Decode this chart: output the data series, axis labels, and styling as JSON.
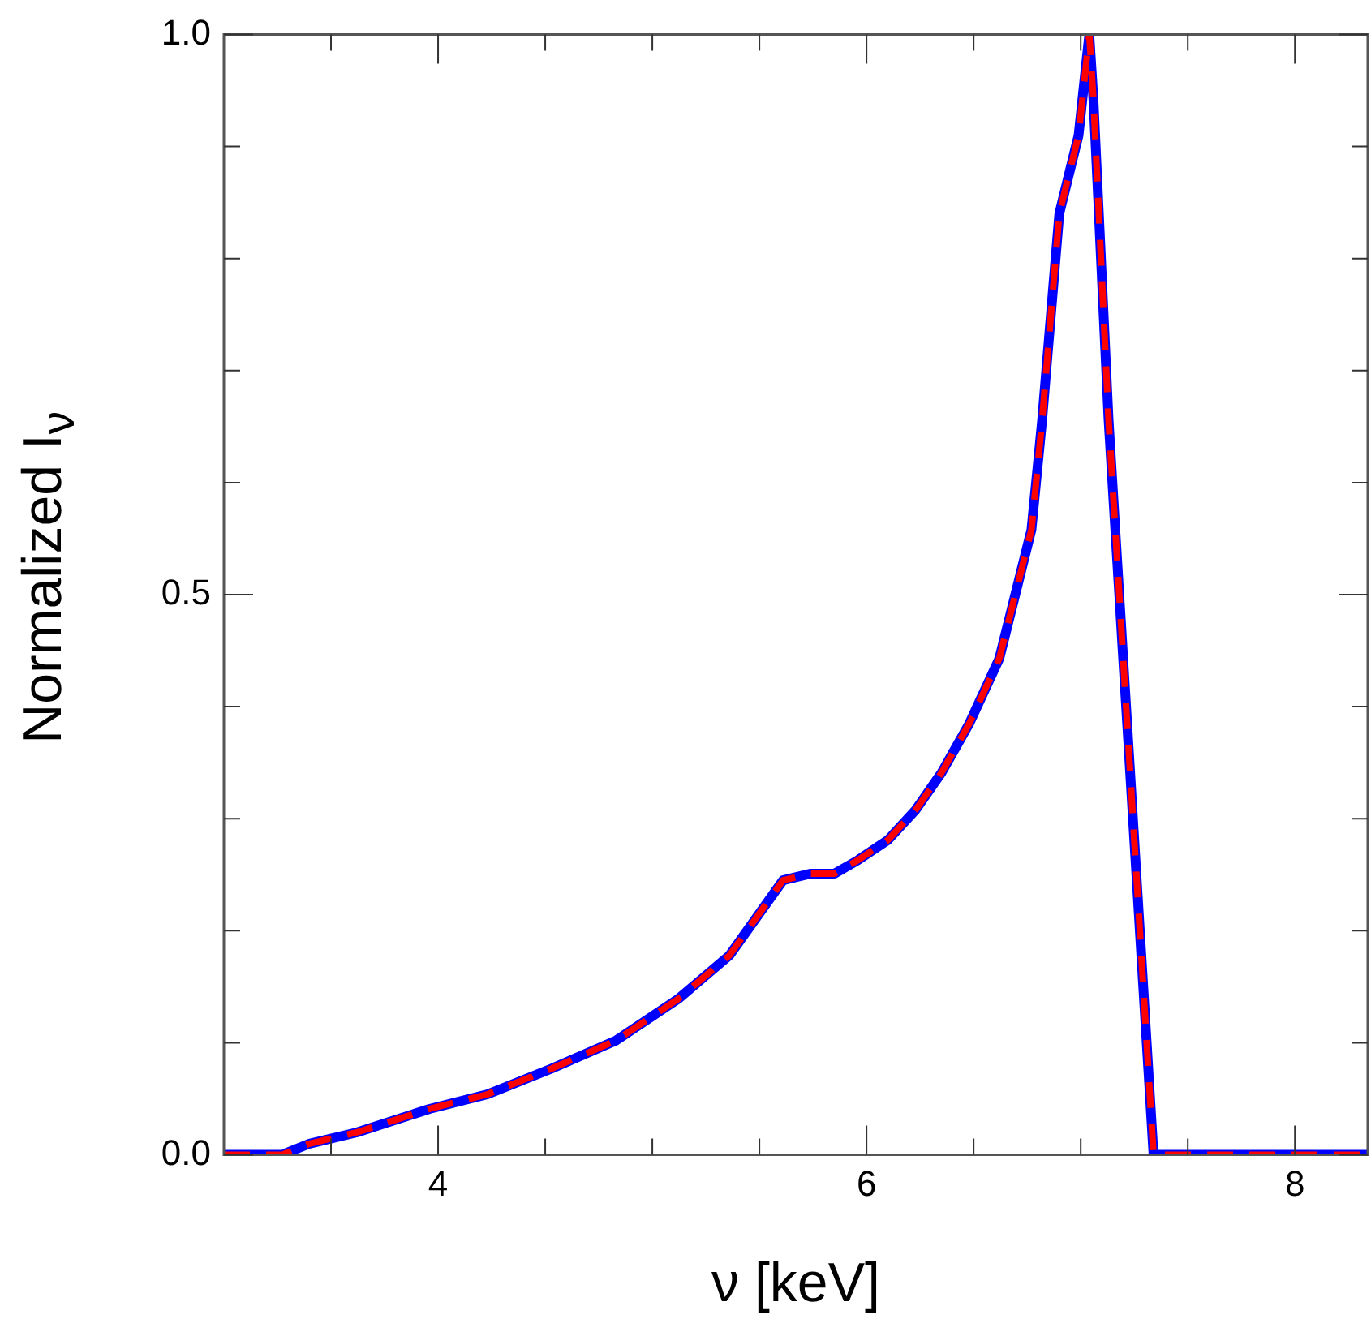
{
  "chart_data": {
    "type": "line",
    "xlabel": "ν [keV]",
    "ylabel": "Normalized I$_{ν}$",
    "x": [
      3.0,
      3.27,
      3.4,
      3.62,
      3.96,
      4.23,
      4.53,
      4.83,
      5.12,
      5.36,
      5.61,
      5.74,
      5.85,
      5.96,
      6.1,
      6.23,
      6.35,
      6.48,
      6.62,
      6.77,
      6.82,
      6.9,
      6.99,
      7.04,
      7.06,
      7.13,
      7.34,
      8.34
    ],
    "series": [
      {
        "color": "#0000ff",
        "line_style": "solid",
        "values": [
          0,
          0,
          0.01,
          0.02,
          0.041,
          0.054,
          0.077,
          0.102,
          0.139,
          0.178,
          0.245,
          0.251,
          0.251,
          0.263,
          0.281,
          0.308,
          0.341,
          0.385,
          0.443,
          0.558,
          0.656,
          0.84,
          0.91,
          1.0,
          0.94,
          0.656,
          0,
          0
        ]
      },
      {
        "color": "#ff0000",
        "line_style": "dashed",
        "values": [
          0,
          0,
          0.01,
          0.02,
          0.041,
          0.054,
          0.077,
          0.102,
          0.139,
          0.178,
          0.245,
          0.251,
          0.251,
          0.263,
          0.281,
          0.308,
          0.341,
          0.385,
          0.443,
          0.558,
          0.656,
          0.84,
          0.91,
          1.0,
          0.94,
          0.656,
          0,
          0
        ]
      }
    ],
    "xlim": [
      3,
      8.34
    ],
    "ylim": [
      0,
      1
    ],
    "xticks": [
      {
        "value": 3.5,
        "label": null
      },
      4,
      {
        "value": 4.5,
        "label": null
      },
      {
        "value": 5,
        "label": null
      },
      {
        "value": 5.5,
        "label": null
      },
      6,
      {
        "value": 6.5,
        "label": null
      },
      {
        "value": 7,
        "label": null
      },
      {
        "value": 7.5,
        "label": null
      },
      8
    ],
    "yticks": [
      {
        "value": 0,
        "label": "0.0"
      },
      {
        "value": 0.1,
        "label": null
      },
      {
        "value": 0.2,
        "label": null
      },
      {
        "value": 0.3,
        "label": null
      },
      {
        "value": 0.4,
        "label": null
      },
      {
        "value": 0.5,
        "label": "0.5"
      },
      {
        "value": 0.6,
        "label": null
      },
      {
        "value": 0.7,
        "label": null
      },
      {
        "value": 0.8,
        "label": null
      },
      {
        "value": 0.9,
        "label": null
      },
      {
        "value": 1,
        "label": "1.0"
      }
    ],
    "grid": false,
    "legend": false,
    "marker": "none"
  }
}
